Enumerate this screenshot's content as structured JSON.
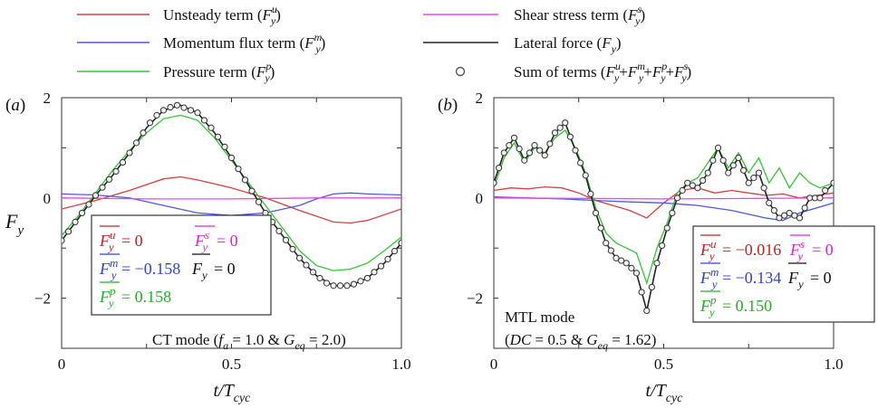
{
  "legend": {
    "items": [
      {
        "key": "unsteady",
        "label": "Unsteady term (F",
        "sup": "u",
        "sub": "y",
        "tail": ")",
        "color": "#d84040",
        "style": "line"
      },
      {
        "key": "shear",
        "label": "Shear stress term (F",
        "sup": "s",
        "sub": "y",
        "tail": ")",
        "color": "#f040f0",
        "style": "line"
      },
      {
        "key": "momentum",
        "label": "Momentum flux term (F",
        "sup": "m",
        "sub": "y",
        "tail": ")",
        "color": "#4a5ae8",
        "style": "line"
      },
      {
        "key": "lateral",
        "label": "Lateral force (F",
        "sup": "",
        "sub": "y",
        "tail": ")",
        "color": "#222222",
        "style": "line"
      },
      {
        "key": "pressure",
        "label": "Pressure term (F",
        "sup": "p",
        "sub": "y",
        "tail": ")",
        "color": "#30c830",
        "style": "line"
      },
      {
        "key": "sum",
        "label": "Sum of terms (F",
        "sup": "",
        "sub": "",
        "tail": "",
        "color": "#555555",
        "style": "circle",
        "sum_text": "Sum of terms (Fuy+Fmy+Fpy+Fsy)"
      }
    ]
  },
  "chart_data": [
    {
      "panel_label": "(a)",
      "type": "line",
      "xlabel": "t/Tcyc",
      "ylabel": "Fy",
      "xlim": [
        0,
        1.0
      ],
      "ylim": [
        -3,
        2
      ],
      "xticks": [
        "0",
        "0.5",
        "1.0"
      ],
      "yticks": [
        "2",
        "0",
        "−2"
      ],
      "mode_text": "CT mode (fa = 1.0 & Geq = 2.0)",
      "means": [
        {
          "term": "Fuy",
          "value": "= 0",
          "color": "#c82020"
        },
        {
          "term": "Fsy",
          "value": "= 0",
          "color": "#e020e0"
        },
        {
          "term": "Fmy",
          "value": "= −0.158",
          "color": "#3040e0"
        },
        {
          "term": "Fy",
          "value": "= 0",
          "color": "#111111"
        },
        {
          "term": "Fpy",
          "value": "= 0.158",
          "color": "#20b020"
        }
      ],
      "series": [
        {
          "key": "unsteady",
          "color": "#d84040",
          "x": [
            0,
            0.1,
            0.2,
            0.3,
            0.35,
            0.4,
            0.5,
            0.6,
            0.7,
            0.8,
            0.85,
            0.9,
            1.0
          ],
          "y": [
            -0.22,
            -0.05,
            0.15,
            0.38,
            0.42,
            0.36,
            0.2,
            0.0,
            -0.25,
            -0.48,
            -0.5,
            -0.45,
            -0.22
          ]
        },
        {
          "key": "momentum",
          "color": "#4a5ae8",
          "x": [
            0,
            0.1,
            0.2,
            0.3,
            0.4,
            0.5,
            0.6,
            0.7,
            0.75,
            0.8,
            0.85,
            0.9,
            1.0
          ],
          "y": [
            0.08,
            0.06,
            0.0,
            -0.15,
            -0.3,
            -0.35,
            -0.3,
            -0.15,
            -0.02,
            0.08,
            0.1,
            0.08,
            0.06
          ]
        },
        {
          "key": "shear",
          "color": "#f040f0",
          "x": [
            0,
            0.25,
            0.5,
            0.75,
            1.0
          ],
          "y": [
            0.0,
            -0.02,
            -0.02,
            0.0,
            0.0
          ]
        },
        {
          "key": "pressure",
          "color": "#30c830",
          "x": [
            0,
            0.05,
            0.1,
            0.15,
            0.2,
            0.25,
            0.3,
            0.35,
            0.4,
            0.45,
            0.5,
            0.55,
            0.6,
            0.65,
            0.7,
            0.75,
            0.8,
            0.85,
            0.9,
            0.95,
            1.0
          ],
          "y": [
            -0.75,
            -0.35,
            0.1,
            0.55,
            0.95,
            1.3,
            1.58,
            1.65,
            1.55,
            1.2,
            0.75,
            0.3,
            -0.15,
            -0.6,
            -1.05,
            -1.35,
            -1.45,
            -1.42,
            -1.3,
            -1.05,
            -0.78
          ]
        },
        {
          "key": "lateral",
          "color": "#222222",
          "x": [
            0,
            0.05,
            0.1,
            0.15,
            0.2,
            0.25,
            0.3,
            0.35,
            0.4,
            0.45,
            0.5,
            0.55,
            0.6,
            0.65,
            0.7,
            0.75,
            0.8,
            0.85,
            0.9,
            0.95,
            1.0
          ],
          "y": [
            -0.85,
            -0.4,
            0.05,
            0.45,
            0.9,
            1.4,
            1.75,
            1.85,
            1.7,
            1.3,
            0.8,
            0.25,
            -0.3,
            -0.75,
            -1.2,
            -1.55,
            -1.75,
            -1.75,
            -1.6,
            -1.3,
            -0.9
          ]
        }
      ],
      "sum_markers": {
        "x": [
          0,
          0.02,
          0.04,
          0.06,
          0.08,
          0.1,
          0.12,
          0.14,
          0.16,
          0.18,
          0.2,
          0.22,
          0.24,
          0.26,
          0.28,
          0.3,
          0.32,
          0.34,
          0.36,
          0.38,
          0.4,
          0.42,
          0.44,
          0.46,
          0.48,
          0.5,
          0.52,
          0.54,
          0.56,
          0.58,
          0.6,
          0.62,
          0.64,
          0.66,
          0.68,
          0.7,
          0.72,
          0.74,
          0.76,
          0.78,
          0.8,
          0.82,
          0.84,
          0.86,
          0.88,
          0.9,
          0.92,
          0.94,
          0.96,
          0.98,
          1.0
        ],
        "y": [
          -0.85,
          -0.67,
          -0.48,
          -0.3,
          -0.13,
          0.05,
          0.21,
          0.37,
          0.53,
          0.71,
          0.9,
          1.1,
          1.3,
          1.5,
          1.65,
          1.75,
          1.81,
          1.85,
          1.8,
          1.75,
          1.7,
          1.55,
          1.4,
          1.22,
          1.02,
          0.8,
          0.58,
          0.36,
          0.14,
          -0.08,
          -0.3,
          -0.48,
          -0.66,
          -0.84,
          -1.02,
          -1.2,
          -1.34,
          -1.48,
          -1.6,
          -1.7,
          -1.75,
          -1.75,
          -1.75,
          -1.72,
          -1.66,
          -1.6,
          -1.48,
          -1.36,
          -1.22,
          -1.06,
          -0.9
        ]
      }
    },
    {
      "panel_label": "(b)",
      "type": "line",
      "xlabel": "t/Tcyc",
      "ylabel": "",
      "xlim": [
        0,
        1.0
      ],
      "ylim": [
        -3,
        2
      ],
      "xticks": [
        "0",
        "0.5",
        "1.0"
      ],
      "yticks": [
        "2",
        "0",
        "−2"
      ],
      "mode_text_line1": "MTL mode",
      "mode_text_line2": "(DC = 0.5 & Geq = 1.62)",
      "means": [
        {
          "term": "Fuy",
          "value": "= −0.016",
          "color": "#c82020"
        },
        {
          "term": "Fsy",
          "value": "= 0",
          "color": "#e020e0"
        },
        {
          "term": "Fmy",
          "value": "= −0.134",
          "color": "#3040e0"
        },
        {
          "term": "Fy",
          "value": "= 0",
          "color": "#111111"
        },
        {
          "term": "Fpy",
          "value": "= 0.150",
          "color": "#20b020"
        }
      ],
      "series": [
        {
          "key": "unsteady",
          "color": "#d84040",
          "x": [
            0,
            0.05,
            0.1,
            0.15,
            0.2,
            0.25,
            0.3,
            0.35,
            0.4,
            0.45,
            0.5,
            0.55,
            0.6,
            0.65,
            0.7,
            0.75,
            0.8,
            0.85,
            0.9,
            0.95,
            1.0
          ],
          "y": [
            0.15,
            0.2,
            0.18,
            0.22,
            0.2,
            0.1,
            -0.05,
            -0.15,
            -0.25,
            -0.4,
            -0.1,
            0.15,
            0.2,
            0.1,
            0.15,
            0.1,
            0.05,
            0.08,
            0.0,
            0.05,
            0.1
          ]
        },
        {
          "key": "momentum",
          "color": "#4a5ae8",
          "x": [
            0,
            0.1,
            0.2,
            0.3,
            0.4,
            0.5,
            0.6,
            0.7,
            0.8,
            0.85,
            0.9,
            1.0
          ],
          "y": [
            0.02,
            0.0,
            -0.02,
            -0.05,
            -0.08,
            -0.1,
            -0.15,
            -0.25,
            -0.4,
            -0.45,
            -0.3,
            -0.1
          ]
        },
        {
          "key": "shear",
          "color": "#f040f0",
          "x": [
            0,
            0.5,
            1.0
          ],
          "y": [
            0.0,
            -0.02,
            0.0
          ]
        },
        {
          "key": "pressure",
          "color": "#30c830",
          "x": [
            0,
            0.03,
            0.06,
            0.09,
            0.12,
            0.15,
            0.18,
            0.21,
            0.24,
            0.27,
            0.3,
            0.33,
            0.36,
            0.39,
            0.42,
            0.45,
            0.48,
            0.51,
            0.54,
            0.57,
            0.6,
            0.63,
            0.66,
            0.69,
            0.72,
            0.75,
            0.78,
            0.81,
            0.84,
            0.87,
            0.9,
            0.93,
            0.96,
            1.0
          ],
          "y": [
            0.2,
            0.8,
            1.1,
            0.7,
            1.0,
            0.9,
            1.2,
            1.35,
            1.0,
            0.5,
            -0.2,
            -0.7,
            -0.9,
            -1.0,
            -1.1,
            -1.7,
            -1.0,
            -0.5,
            0.1,
            0.3,
            0.4,
            0.7,
            1.0,
            0.6,
            0.9,
            0.5,
            0.8,
            0.3,
            0.6,
            0.2,
            0.5,
            0.3,
            0.2,
            0.3
          ]
        },
        {
          "key": "lateral",
          "color": "#222222",
          "x": [
            0,
            0.03,
            0.06,
            0.09,
            0.12,
            0.15,
            0.18,
            0.21,
            0.24,
            0.27,
            0.3,
            0.33,
            0.36,
            0.39,
            0.42,
            0.45,
            0.48,
            0.51,
            0.54,
            0.57,
            0.6,
            0.63,
            0.66,
            0.69,
            0.72,
            0.75,
            0.78,
            0.81,
            0.84,
            0.87,
            0.9,
            0.93,
            0.96,
            1.0
          ],
          "y": [
            0.3,
            0.9,
            1.2,
            0.75,
            1.05,
            0.85,
            1.3,
            1.5,
            0.95,
            0.45,
            -0.3,
            -0.9,
            -1.2,
            -1.3,
            -1.5,
            -2.25,
            -1.3,
            -0.6,
            0.0,
            0.3,
            0.2,
            0.5,
            1.0,
            0.5,
            0.8,
            0.3,
            0.5,
            -0.1,
            -0.4,
            -0.3,
            -0.4,
            0.0,
            0.0,
            0.3
          ]
        }
      ],
      "sum_markers": {
        "x": [
          0,
          0.015,
          0.03,
          0.045,
          0.06,
          0.075,
          0.09,
          0.105,
          0.12,
          0.135,
          0.15,
          0.165,
          0.18,
          0.195,
          0.21,
          0.225,
          0.24,
          0.255,
          0.27,
          0.285,
          0.3,
          0.315,
          0.33,
          0.345,
          0.36,
          0.375,
          0.39,
          0.405,
          0.42,
          0.435,
          0.45,
          0.465,
          0.48,
          0.495,
          0.51,
          0.525,
          0.54,
          0.555,
          0.57,
          0.585,
          0.6,
          0.615,
          0.63,
          0.645,
          0.66,
          0.675,
          0.69,
          0.705,
          0.72,
          0.735,
          0.75,
          0.765,
          0.78,
          0.795,
          0.81,
          0.825,
          0.84,
          0.855,
          0.87,
          0.885,
          0.9,
          0.915,
          0.93,
          0.945,
          0.96,
          0.975,
          1.0
        ],
        "y": [
          0.3,
          0.6,
          0.9,
          1.05,
          1.2,
          0.98,
          0.75,
          0.9,
          1.05,
          0.95,
          0.85,
          1.08,
          1.3,
          1.4,
          1.5,
          1.22,
          0.95,
          0.7,
          0.45,
          0.08,
          -0.3,
          -0.6,
          -0.9,
          -1.05,
          -1.2,
          -1.25,
          -1.3,
          -1.4,
          -1.5,
          -1.88,
          -2.25,
          -1.78,
          -1.3,
          -0.95,
          -0.6,
          -0.3,
          0.0,
          0.15,
          0.3,
          0.25,
          0.2,
          0.35,
          0.5,
          0.75,
          1.0,
          0.75,
          0.5,
          0.65,
          0.8,
          0.55,
          0.3,
          0.4,
          0.5,
          0.2,
          -0.1,
          -0.25,
          -0.4,
          -0.35,
          -0.3,
          -0.35,
          -0.4,
          -0.2,
          0.0,
          0.0,
          0.0,
          0.15,
          0.3
        ]
      }
    }
  ]
}
